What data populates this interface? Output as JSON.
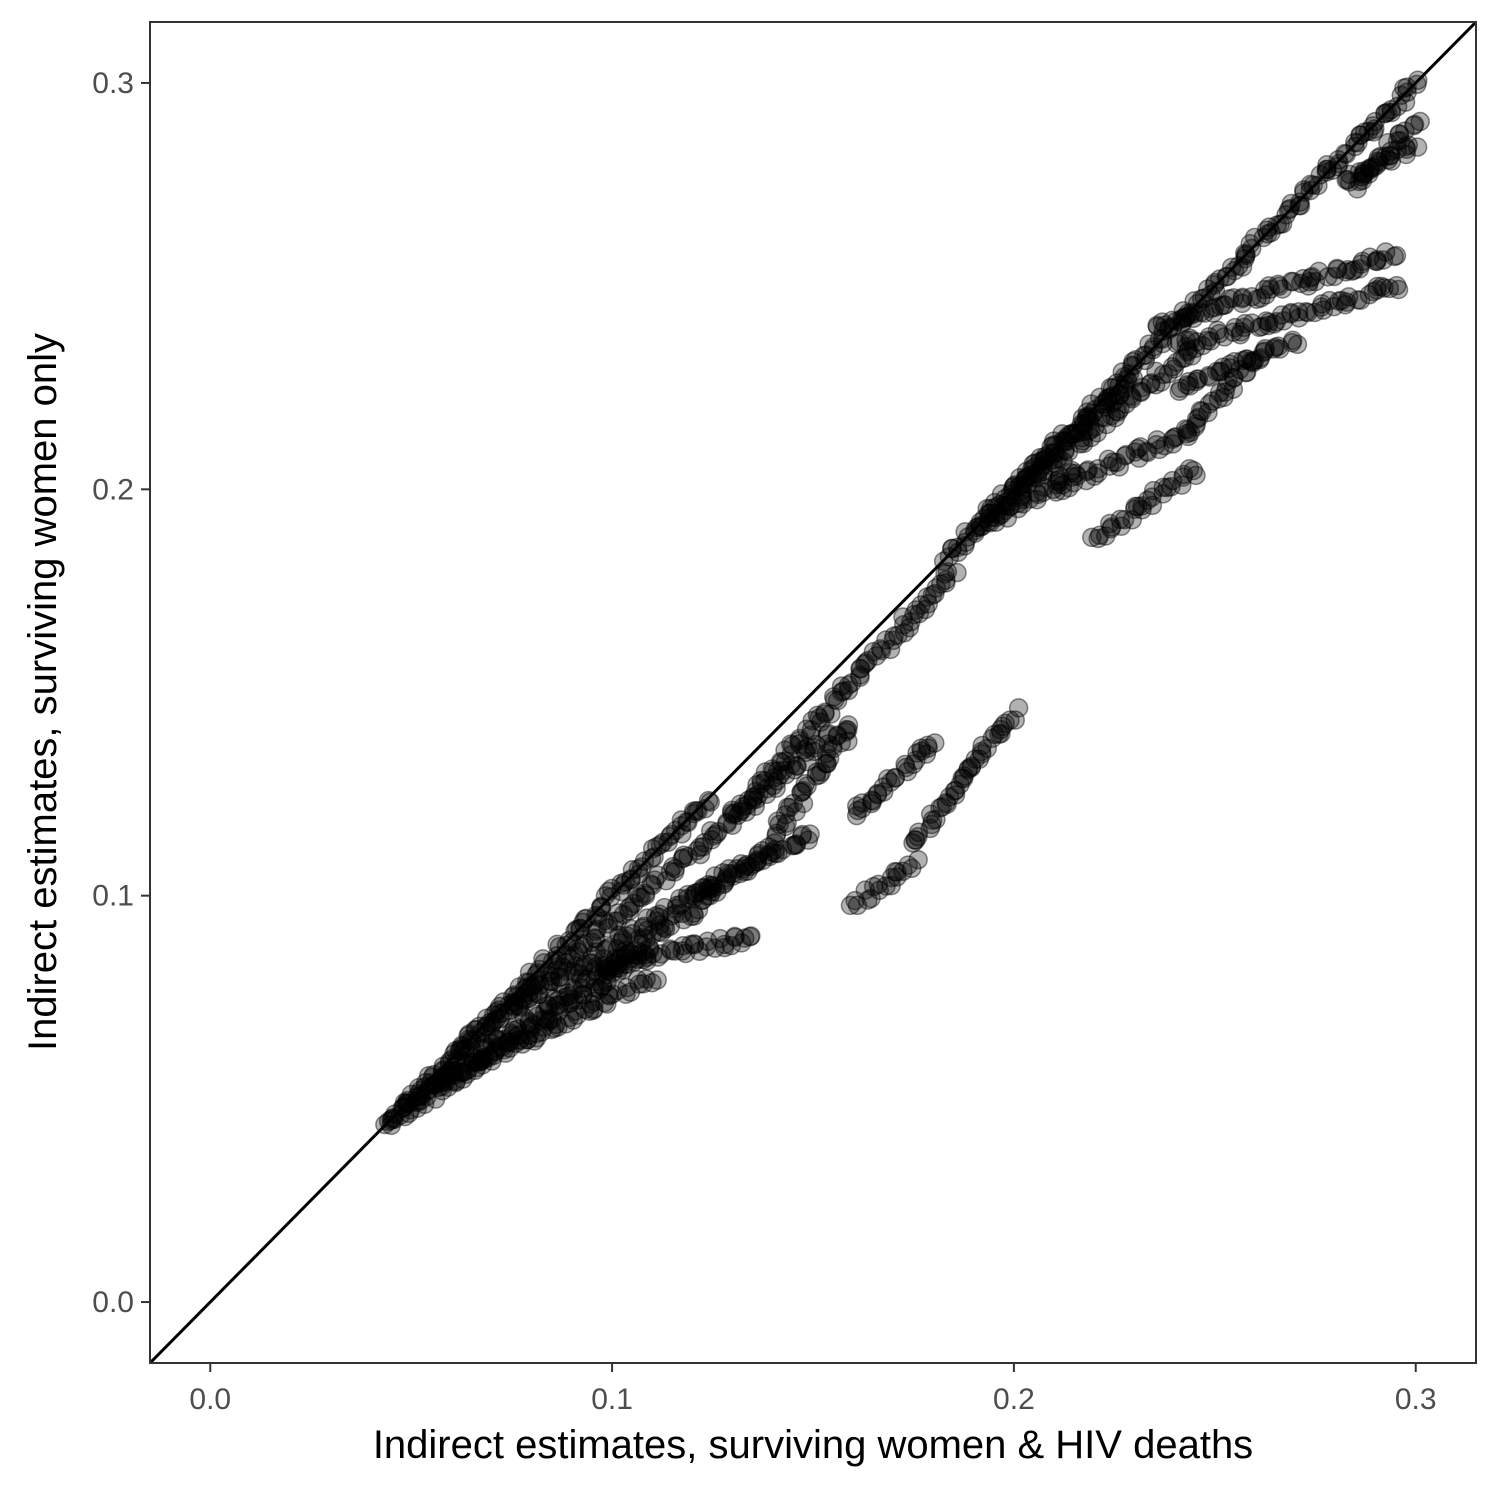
{
  "chart_data": {
    "type": "scatter",
    "title": "",
    "xlabel": "Indirect estimates, surviving women & HIV deaths",
    "ylabel": "Indirect estimates, surviving women only",
    "xlim": [
      -0.015,
      0.315
    ],
    "ylim": [
      -0.015,
      0.315
    ],
    "x_ticks": [
      0.0,
      0.1,
      0.2,
      0.3
    ],
    "y_ticks": [
      0.0,
      0.1,
      0.2,
      0.3
    ],
    "x_tick_labels": [
      "0.0",
      "0.1",
      "0.2",
      "0.3"
    ],
    "y_tick_labels": [
      "0.0",
      "0.1",
      "0.2",
      "0.3"
    ],
    "grid": false,
    "reference_line": {
      "type": "identity",
      "slope": 1,
      "intercept": 0
    },
    "point_color": "#000000",
    "point_opacity": 0.3,
    "segments": [
      {
        "from": [
          0.044,
          0.044
        ],
        "to": [
          0.124,
          0.124
        ]
      },
      {
        "from": [
          0.183,
          0.183
        ],
        "to": [
          0.3,
          0.3
        ]
      },
      {
        "from": [
          0.044,
          0.044
        ],
        "to": [
          0.11,
          0.087
        ]
      },
      {
        "from": [
          0.048,
          0.048
        ],
        "to": [
          0.125,
          0.1
        ]
      },
      {
        "from": [
          0.06,
          0.06
        ],
        "to": [
          0.155,
          0.14
        ]
      },
      {
        "from": [
          0.075,
          0.072
        ],
        "to": [
          0.14,
          0.112
        ]
      },
      {
        "from": [
          0.055,
          0.053
        ],
        "to": [
          0.11,
          0.08
        ]
      },
      {
        "from": [
          0.12,
          0.1
        ],
        "to": [
          0.15,
          0.115
        ]
      },
      {
        "from": [
          0.095,
          0.082
        ],
        "to": [
          0.135,
          0.09
        ]
      },
      {
        "from": [
          0.14,
          0.115
        ],
        "to": [
          0.16,
          0.142
        ]
      },
      {
        "from": [
          0.13,
          0.12
        ],
        "to": [
          0.185,
          0.18
        ]
      },
      {
        "from": [
          0.19,
          0.19
        ],
        "to": [
          0.245,
          0.235
        ]
      },
      {
        "from": [
          0.2,
          0.2
        ],
        "to": [
          0.23,
          0.228
        ]
      },
      {
        "from": [
          0.195,
          0.192
        ],
        "to": [
          0.215,
          0.205
        ]
      },
      {
        "from": [
          0.21,
          0.2
        ],
        "to": [
          0.245,
          0.215
        ]
      },
      {
        "from": [
          0.235,
          0.24
        ],
        "to": [
          0.295,
          0.258
        ]
      },
      {
        "from": [
          0.24,
          0.235
        ],
        "to": [
          0.295,
          0.25
        ]
      },
      {
        "from": [
          0.24,
          0.225
        ],
        "to": [
          0.27,
          0.236
        ]
      },
      {
        "from": [
          0.243,
          0.215
        ],
        "to": [
          0.26,
          0.232
        ]
      },
      {
        "from": [
          0.22,
          0.188
        ],
        "to": [
          0.245,
          0.205
        ]
      },
      {
        "from": [
          0.175,
          0.113
        ],
        "to": [
          0.2,
          0.145
        ]
      },
      {
        "from": [
          0.16,
          0.098
        ],
        "to": [
          0.175,
          0.108
        ]
      },
      {
        "from": [
          0.16,
          0.12
        ],
        "to": [
          0.18,
          0.138
        ]
      },
      {
        "from": [
          0.285,
          0.275
        ],
        "to": [
          0.3,
          0.29
        ]
      },
      {
        "from": [
          0.282,
          0.275
        ],
        "to": [
          0.3,
          0.285
        ]
      }
    ]
  }
}
